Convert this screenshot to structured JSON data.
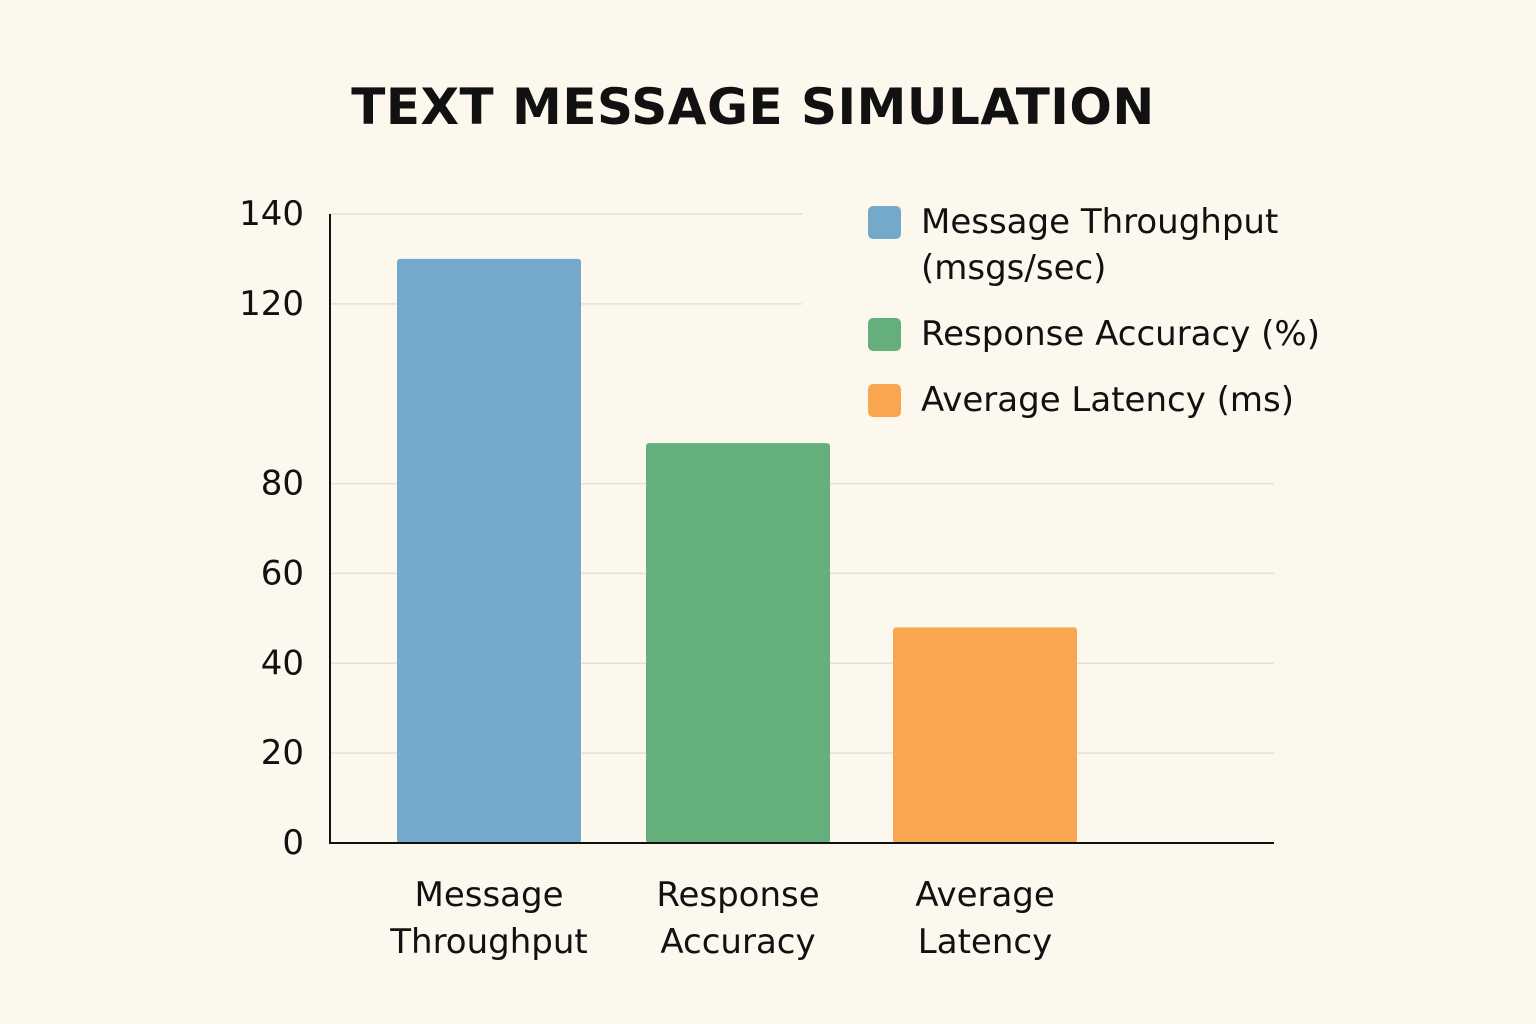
{
  "chart_data": {
    "type": "bar",
    "title": "TEXT MESSAGE SIMULATION",
    "xlabel": "",
    "ylabel": "",
    "categories": [
      [
        "Message",
        "Throughput"
      ],
      [
        "Response",
        "Accuracy"
      ],
      [
        "Average",
        "Latency"
      ]
    ],
    "values": [
      130,
      89,
      48
    ],
    "colors": [
      "#74a9cc",
      "#64af7c",
      "#f9a650"
    ],
    "y_ticks": [
      0,
      20,
      40,
      60,
      80,
      120,
      140
    ],
    "ylim": [
      0,
      140
    ],
    "grid": true,
    "legend_position": "top-right",
    "legend": [
      {
        "lines": [
          "Message Throughput",
          "(msgs/sec)"
        ],
        "color": "#74a9cc"
      },
      {
        "lines": [
          "Response Accuracy (%)"
        ],
        "color": "#64af7c"
      },
      {
        "lines": [
          "Average Latency (ms)"
        ],
        "color": "#f9a650"
      }
    ]
  }
}
